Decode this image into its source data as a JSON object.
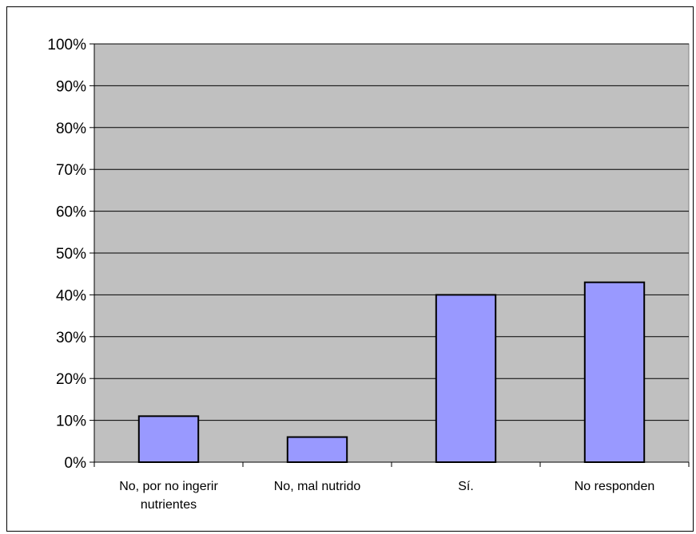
{
  "chart_data": {
    "type": "bar",
    "categories": [
      [
        "No, por no ingerir",
        "nutrientes"
      ],
      [
        "No, mal nutrido"
      ],
      [
        "Sí."
      ],
      [
        "No responden"
      ]
    ],
    "values": [
      11,
      6,
      40,
      43
    ],
    "ylim": [
      0,
      100
    ],
    "yticks": [
      "0%",
      "10%",
      "20%",
      "30%",
      "40%",
      "50%",
      "60%",
      "70%",
      "80%",
      "90%",
      "100%"
    ],
    "title": "",
    "xlabel": "",
    "ylabel": "",
    "grid": true,
    "legend": "none",
    "colors": {
      "bar_fill": "#9999ff",
      "plot_background": "#c0c0c0",
      "gridline": "#000000"
    }
  }
}
